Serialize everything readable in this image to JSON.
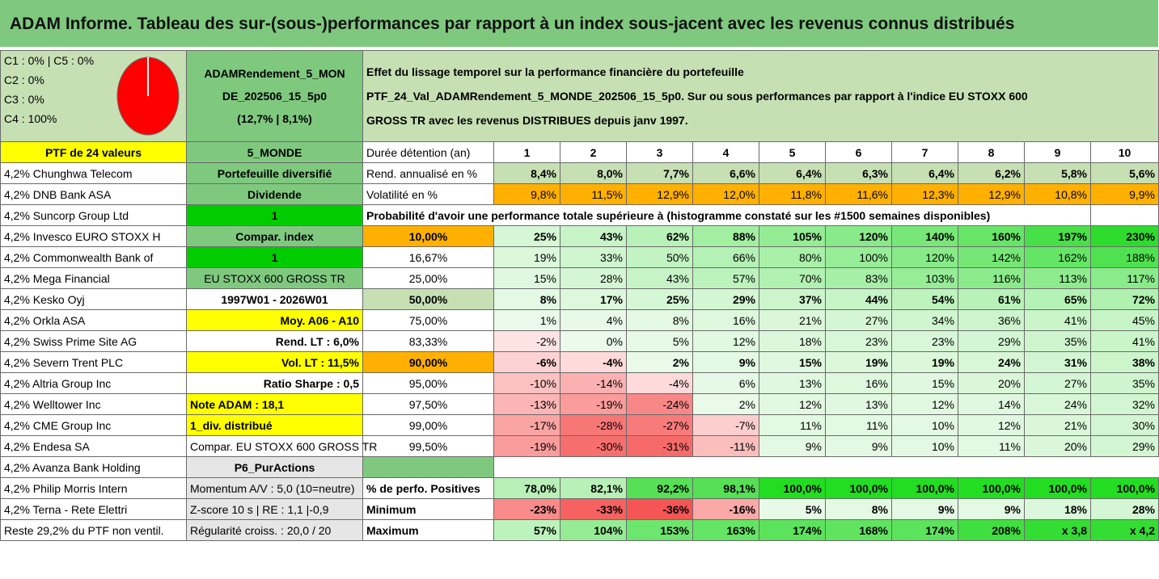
{
  "title": "ADAM Informe. Tableau des sur-(sous-)performances par rapport à un index sous-jacent avec les revenus connus distribués",
  "legend": [
    "C1 : 0% | C5 : 0%",
    "C2 : 0%",
    "C3 : 0%",
    "C4 : 100%"
  ],
  "pie_icon": "pie-chart-icon",
  "portfolio_name_lines": [
    "ADAMRendement_5_MON",
    "DE_202506_15_5p0",
    "(12,7% | 8,1%)"
  ],
  "description_lines": [
    "Effet du lissage temporel sur la performance financière du portefeuille",
    "PTF_24_Val_ADAMRendement_5_MONDE_202506_15_5p0. Sur ou sous performances par rapport à l'indice EU STOXX 600",
    "GROSS TR avec les revenus DISTRIBUES depuis janv 1997."
  ],
  "ptf_label": "PTF de 24 valeurs",
  "zone": "5_MONDE",
  "holding_label": "Durée détention (an)",
  "years": [
    "1",
    "2",
    "3",
    "4",
    "5",
    "6",
    "7",
    "8",
    "9",
    "10"
  ],
  "holdings": [
    "4,2% Chunghwa Telecom",
    "4,2% DNB Bank ASA",
    "4,2% Suncorp Group Ltd",
    "4,2% Invesco EURO STOXX H",
    "4,2% Commonwealth Bank of",
    "4,2% Mega Financial",
    "4,2% Kesko Oyj",
    "4,2% Orkla ASA",
    "4,2% Swiss Prime Site AG",
    "4,2% Severn Trent PLC",
    "4,2% Altria Group Inc",
    "4,2% Welltower Inc",
    "4,2% CME Group Inc",
    "4,2% Endesa SA",
    "4,2% Avanza Bank Holding",
    "4,2% Philip Morris Intern",
    "4,2% Terna - Rete Elettri",
    "Reste 29,2% du PTF non ventil."
  ],
  "info": [
    "Portefeuille diversifié",
    "Dividende",
    "1",
    "Compar. index",
    "1",
    "EU STOXX 600 GROSS TR",
    "1997W01 - 2026W01",
    "Moy. A06 - A10",
    "Rend. LT : 6,0%",
    "Vol. LT : 11,5%",
    "Ratio Sharpe : 0,5",
    "Note ADAM : 18,1",
    "1_div. distribué",
    "Compar. EU STOXX 600 GROSS TR",
    "P6_PurActions",
    "Momentum A/V : 5,0 (10=neutre)",
    "Z-score 10 s | RE : 1,1 |-0,9",
    "Régularité croiss. : 20,0 / 20"
  ],
  "rend": {
    "label": "Rend. annualisé en %",
    "values": [
      "8,4%",
      "8,0%",
      "7,7%",
      "6,6%",
      "6,4%",
      "6,3%",
      "6,4%",
      "6,2%",
      "5,8%",
      "5,6%"
    ]
  },
  "vol": {
    "label": "Volatilité en %",
    "values": [
      "9,8%",
      "11,5%",
      "12,9%",
      "12,0%",
      "11,8%",
      "11,6%",
      "12,3%",
      "12,9%",
      "10,8%",
      "9,9%"
    ]
  },
  "proba_title": "Probabilité d'avoir une performance totale supérieure à (histogramme constaté sur les #1500 semaines disponibles)",
  "quantiles": [
    {
      "p": "10,00%",
      "v": [
        "25%",
        "43%",
        "62%",
        "88%",
        "105%",
        "120%",
        "140%",
        "160%",
        "197%",
        "230%"
      ]
    },
    {
      "p": "16,67%",
      "v": [
        "19%",
        "33%",
        "50%",
        "66%",
        "80%",
        "100%",
        "120%",
        "142%",
        "162%",
        "188%"
      ]
    },
    {
      "p": "25,00%",
      "v": [
        "15%",
        "28%",
        "43%",
        "57%",
        "70%",
        "83%",
        "103%",
        "116%",
        "113%",
        "117%"
      ]
    },
    {
      "p": "50,00%",
      "v": [
        "8%",
        "17%",
        "25%",
        "29%",
        "37%",
        "44%",
        "54%",
        "61%",
        "65%",
        "72%"
      ]
    },
    {
      "p": "75,00%",
      "v": [
        "1%",
        "4%",
        "8%",
        "16%",
        "21%",
        "27%",
        "34%",
        "36%",
        "41%",
        "45%"
      ]
    },
    {
      "p": "83,33%",
      "v": [
        "-2%",
        "0%",
        "5%",
        "12%",
        "18%",
        "23%",
        "23%",
        "29%",
        "35%",
        "41%"
      ]
    },
    {
      "p": "90,00%",
      "v": [
        "-6%",
        "-4%",
        "2%",
        "9%",
        "15%",
        "19%",
        "19%",
        "24%",
        "31%",
        "38%"
      ]
    },
    {
      "p": "95,00%",
      "v": [
        "-10%",
        "-14%",
        "-4%",
        "6%",
        "13%",
        "16%",
        "15%",
        "20%",
        "27%",
        "35%"
      ]
    },
    {
      "p": "97,50%",
      "v": [
        "-13%",
        "-19%",
        "-24%",
        "2%",
        "12%",
        "13%",
        "12%",
        "14%",
        "24%",
        "32%"
      ]
    },
    {
      "p": "99,00%",
      "v": [
        "-17%",
        "-28%",
        "-27%",
        "-7%",
        "11%",
        "11%",
        "10%",
        "12%",
        "21%",
        "30%"
      ]
    },
    {
      "p": "99,50%",
      "v": [
        "-19%",
        "-30%",
        "-31%",
        "-11%",
        "9%",
        "9%",
        "10%",
        "11%",
        "20%",
        "29%"
      ]
    }
  ],
  "pos": {
    "label": "% de perfo. Positives",
    "values": [
      "78,0%",
      "82,1%",
      "92,2%",
      "98,1%",
      "100,0%",
      "100,0%",
      "100,0%",
      "100,0%",
      "100,0%",
      "100,0%"
    ]
  },
  "min": {
    "label": "Minimum",
    "values": [
      "-23%",
      "-33%",
      "-36%",
      "-16%",
      "5%",
      "8%",
      "9%",
      "9%",
      "18%",
      "28%"
    ]
  },
  "max": {
    "label": "Maximum",
    "values": [
      "57%",
      "104%",
      "153%",
      "163%",
      "174%",
      "168%",
      "174%",
      "208%",
      "x 3,8",
      "x 4,2"
    ]
  }
}
